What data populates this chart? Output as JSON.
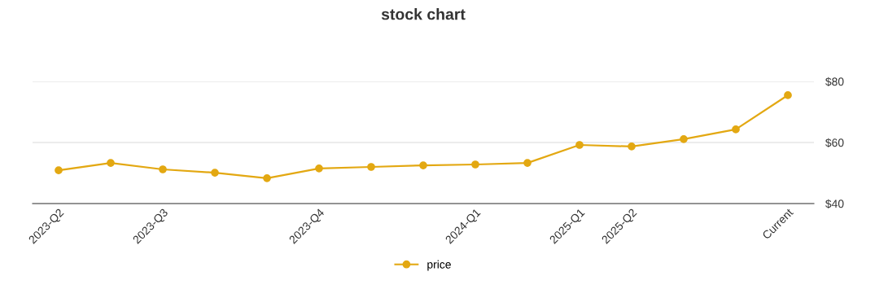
{
  "chart_data": {
    "type": "line",
    "title": "stock chart",
    "categories": [
      "2023-Q2",
      null,
      "2023-Q3",
      null,
      null,
      "2023-Q4",
      null,
      null,
      "2024-Q1",
      null,
      "2025-Q1",
      "2025-Q2",
      null,
      null,
      "Current"
    ],
    "series": [
      {
        "name": "price",
        "color": "#e3a812",
        "values": [
          50.9,
          53.3,
          51.2,
          50.1,
          48.3,
          51.5,
          52.0,
          52.5,
          52.8,
          53.3,
          59.2,
          58.7,
          61.1,
          64.3,
          75.5
        ]
      }
    ],
    "ylim": [
      40,
      80
    ],
    "yticks": [
      {
        "value": 40,
        "label": "$40"
      },
      {
        "value": 60,
        "label": "$60"
      },
      {
        "value": 80,
        "label": "$80"
      }
    ],
    "grid": "y",
    "legend": "bottom",
    "marker": "circle",
    "line_style": "solid"
  }
}
